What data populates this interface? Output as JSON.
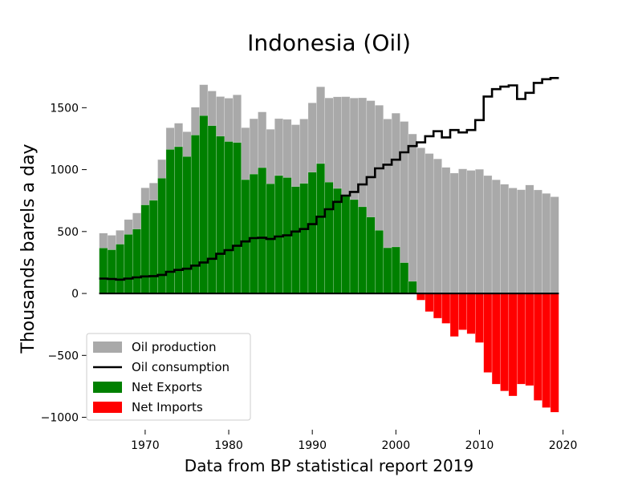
{
  "chart_data": {
    "type": "bar",
    "title": "Indonesia (Oil)",
    "xlabel": "Data from BP statistical report 2019",
    "ylabel": "Thousands barels a day",
    "xlim": [
      1963,
      2021
    ],
    "ylim": [
      -1100,
      1800
    ],
    "x_ticks": [
      1970,
      1980,
      1990,
      2000,
      2010,
      2020
    ],
    "y_ticks": [
      -1000,
      -500,
      0,
      500,
      1000,
      1500
    ],
    "y_tick_labels": [
      "−1000",
      "−500",
      "0",
      "500",
      "1000",
      "1500"
    ],
    "legend_position": "lower-left",
    "grid": false,
    "years": [
      1965,
      1966,
      1967,
      1968,
      1969,
      1970,
      1971,
      1972,
      1973,
      1974,
      1975,
      1976,
      1977,
      1978,
      1979,
      1980,
      1981,
      1982,
      1983,
      1984,
      1985,
      1986,
      1987,
      1988,
      1989,
      1990,
      1991,
      1992,
      1993,
      1994,
      1995,
      1996,
      1997,
      1998,
      1999,
      2000,
      2001,
      2002,
      2003,
      2004,
      2005,
      2006,
      2007,
      2008,
      2009,
      2010,
      2011,
      2012,
      2013,
      2014,
      2015,
      2016,
      2017,
      2018,
      2019
    ],
    "series": [
      {
        "name": "Oil production",
        "color": "#a9a9a9",
        "values": [
          487,
          470,
          510,
          597,
          650,
          853,
          892,
          1081,
          1338,
          1375,
          1306,
          1504,
          1686,
          1635,
          1590,
          1577,
          1604,
          1339,
          1411,
          1466,
          1326,
          1412,
          1406,
          1363,
          1409,
          1539,
          1669,
          1579,
          1588,
          1589,
          1578,
          1580,
          1557,
          1520,
          1409,
          1456,
          1389,
          1288,
          1176,
          1130,
          1087,
          1018,
          972,
          1006,
          994,
          1003,
          952,
          918,
          882,
          852,
          838,
          876,
          836,
          808,
          781
        ]
      },
      {
        "name": "Oil consumption",
        "color": "#000000",
        "values": [
          120,
          117,
          112,
          120,
          130,
          138,
          140,
          150,
          175,
          190,
          200,
          225,
          250,
          280,
          320,
          350,
          385,
          420,
          447,
          450,
          440,
          460,
          470,
          500,
          520,
          560,
          620,
          680,
          740,
          790,
          820,
          880,
          940,
          1010,
          1040,
          1080,
          1140,
          1190,
          1220,
          1270,
          1310,
          1260,
          1320,
          1300,
          1320,
          1400,
          1590,
          1650,
          1670,
          1680,
          1570,
          1620,
          1700,
          1730,
          1740
        ]
      },
      {
        "name": "Net Exports",
        "color": "#008000",
        "values": [
          367,
          353,
          398,
          477,
          520,
          715,
          752,
          931,
          1163,
          1185,
          1106,
          1279,
          1436,
          1355,
          1270,
          1227,
          1219,
          919,
          964,
          1016,
          886,
          952,
          936,
          863,
          889,
          979,
          1049,
          899,
          848,
          799,
          758,
          700,
          617,
          510,
          369,
          376,
          249,
          98,
          0,
          0,
          0,
          0,
          0,
          0,
          0,
          0,
          0,
          0,
          0,
          0,
          0,
          0,
          0,
          0,
          0
        ]
      },
      {
        "name": "Net Imports",
        "color": "#ff0000",
        "values": [
          0,
          0,
          0,
          0,
          0,
          0,
          0,
          0,
          0,
          0,
          0,
          0,
          0,
          0,
          0,
          0,
          0,
          0,
          0,
          0,
          0,
          0,
          0,
          0,
          0,
          0,
          0,
          0,
          0,
          0,
          0,
          0,
          0,
          0,
          0,
          0,
          0,
          0,
          -54,
          -147,
          -200,
          -242,
          -348,
          -294,
          -326,
          -397,
          -638,
          -732,
          -788,
          -828,
          -732,
          -744,
          -864,
          -922,
          -959
        ]
      }
    ]
  }
}
